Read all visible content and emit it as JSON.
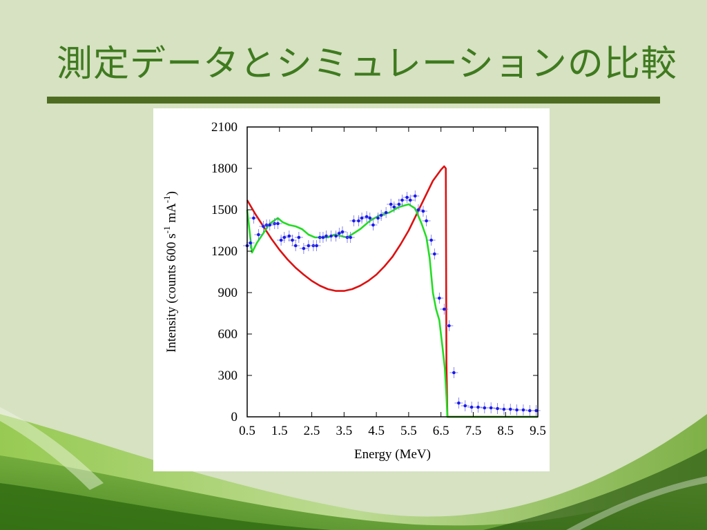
{
  "slide": {
    "title": "測定データとシミュレーションの比較",
    "colors": {
      "background": "#d6e2c2",
      "title": "#3f7a1f",
      "rule": "#4f6d22"
    }
  },
  "chart_data": {
    "type": "line",
    "title": "",
    "xlabel": "Energy (MeV)",
    "ylabel": "Intensity (counts 600 s-1 mA-1)",
    "ylabel_parts": {
      "pre": "Intensity (counts 600 s",
      "sup1": "-1",
      "mid": " mA",
      "sup2": "-1",
      "post": ")"
    },
    "xlim": [
      0.5,
      9.5
    ],
    "ylim": [
      0,
      2100
    ],
    "xticks": [
      "0.5",
      "1.5",
      "2.5",
      "3.5",
      "4.5",
      "5.5",
      "6.5",
      "7.5",
      "8.5",
      "9.5"
    ],
    "yticks": [
      "0",
      "300",
      "600",
      "900",
      "1200",
      "1500",
      "1800",
      "2100"
    ],
    "grid": false,
    "legend": "none",
    "series": [
      {
        "kind": "line",
        "color": "#dd1111",
        "x": [
          0.5,
          0.75,
          1.0,
          1.25,
          1.5,
          1.75,
          2.0,
          2.25,
          2.5,
          2.75,
          3.0,
          3.25,
          3.5,
          3.75,
          4.0,
          4.25,
          4.5,
          4.75,
          5.0,
          5.25,
          5.5,
          5.75,
          6.0,
          6.25,
          6.5,
          6.6,
          6.65,
          6.67,
          6.7,
          9.5
        ],
        "y": [
          1570,
          1470,
          1380,
          1290,
          1210,
          1140,
          1080,
          1030,
          985,
          950,
          925,
          912,
          912,
          925,
          950,
          985,
          1030,
          1090,
          1160,
          1250,
          1350,
          1470,
          1590,
          1710,
          1790,
          1815,
          1800,
          400,
          0,
          0
        ]
      },
      {
        "kind": "line",
        "color": "#22dd22",
        "x": [
          0.5,
          0.65,
          0.8,
          1.0,
          1.2,
          1.45,
          1.6,
          1.8,
          2.0,
          2.2,
          2.4,
          2.6,
          2.8,
          3.0,
          3.2,
          3.4,
          3.6,
          3.8,
          4.0,
          4.3,
          4.6,
          4.9,
          5.2,
          5.5,
          5.7,
          5.9,
          6.05,
          6.15,
          6.25,
          6.35,
          6.45,
          6.55,
          6.62,
          6.67,
          6.7,
          9.5
        ],
        "y": [
          1500,
          1190,
          1260,
          1330,
          1400,
          1440,
          1410,
          1390,
          1380,
          1360,
          1320,
          1300,
          1300,
          1300,
          1320,
          1310,
          1300,
          1330,
          1360,
          1420,
          1460,
          1480,
          1520,
          1540,
          1510,
          1400,
          1300,
          1150,
          900,
          780,
          700,
          500,
          350,
          150,
          0,
          0
        ]
      },
      {
        "kind": "points",
        "color": "#1a1aee",
        "x": [
          0.5,
          0.6,
          0.7,
          0.85,
          1.0,
          1.1,
          1.2,
          1.35,
          1.45,
          1.55,
          1.65,
          1.8,
          1.9,
          2.0,
          2.1,
          2.25,
          2.4,
          2.55,
          2.65,
          2.75,
          2.85,
          2.95,
          3.1,
          3.25,
          3.35,
          3.45,
          3.6,
          3.7,
          3.8,
          3.95,
          4.05,
          4.2,
          4.3,
          4.4,
          4.55,
          4.65,
          4.8,
          4.95,
          5.05,
          5.2,
          5.3,
          5.45,
          5.55,
          5.7,
          5.8,
          5.95,
          6.05,
          6.2,
          6.3,
          6.45,
          6.6,
          6.75,
          6.9,
          7.05,
          7.25,
          7.45,
          7.65,
          7.85,
          8.05,
          8.25,
          8.45,
          8.65,
          8.85,
          9.05,
          9.25,
          9.45
        ],
        "y": [
          1240,
          1260,
          1440,
          1320,
          1380,
          1390,
          1390,
          1400,
          1400,
          1280,
          1300,
          1310,
          1280,
          1240,
          1300,
          1220,
          1240,
          1240,
          1240,
          1300,
          1300,
          1310,
          1310,
          1310,
          1330,
          1340,
          1300,
          1300,
          1420,
          1420,
          1440,
          1450,
          1440,
          1390,
          1440,
          1460,
          1480,
          1540,
          1520,
          1540,
          1570,
          1590,
          1570,
          1600,
          1500,
          1490,
          1420,
          1280,
          1180,
          860,
          780,
          660,
          320,
          100,
          80,
          70,
          70,
          65,
          65,
          60,
          55,
          55,
          50,
          50,
          45,
          45
        ]
      }
    ]
  }
}
